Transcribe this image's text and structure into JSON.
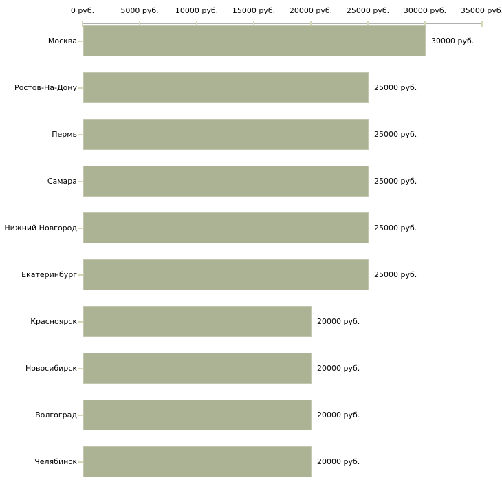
{
  "chart_data": {
    "type": "bar",
    "orientation": "horizontal",
    "title": "",
    "xlabel": "",
    "ylabel": "",
    "unit": "руб.",
    "categories": [
      "Москва",
      "Ростов-На-Дону",
      "Пермь",
      "Самара",
      "Нижний Новгород",
      "Екатеринбург",
      "Красноярск",
      "Новосибирск",
      "Волгоград",
      "Челябинск"
    ],
    "values": [
      30000,
      25000,
      25000,
      25000,
      25000,
      25000,
      20000,
      20000,
      20000,
      20000
    ],
    "value_labels": [
      "30000 руб.",
      "25000 руб.",
      "25000 руб.",
      "25000 руб.",
      "25000 руб.",
      "25000 руб.",
      "20000 руб.",
      "20000 руб.",
      "20000 руб.",
      "20000 руб."
    ],
    "x_ticks": [
      0,
      5000,
      10000,
      15000,
      20000,
      25000,
      30000,
      35000
    ],
    "x_tick_labels": [
      "0 руб.",
      "5000 руб.",
      "10000 руб.",
      "15000 руб.",
      "20000 руб.",
      "25000 руб.",
      "30000 руб.",
      "35000 руб."
    ],
    "xlim": [
      0,
      35000
    ],
    "grid": false,
    "legend": null,
    "colors": {
      "bar": "#acb294",
      "bar_border": "#c3c7af",
      "axis_line": "#b0b0b0",
      "tick_mark": "#d8d8b6",
      "text": "#000000",
      "background": "#ffffff"
    }
  }
}
